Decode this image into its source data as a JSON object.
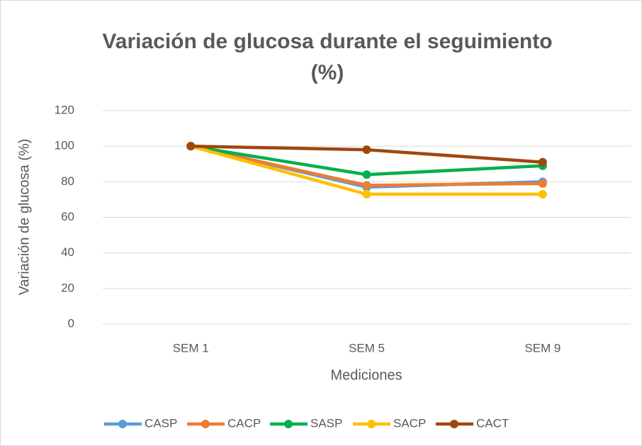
{
  "chart_data": {
    "type": "line",
    "title": "Variación de glucosa durante el seguimiento (%)",
    "y_label": "Variación de glucosa (%)",
    "x_label": "Mediciones",
    "categories": [
      "SEM 1",
      "SEM 5",
      "SEM 9"
    ],
    "series": [
      {
        "name": "CASP",
        "color": "#5b9bd5",
        "values": [
          100,
          77,
          80
        ]
      },
      {
        "name": "CACP",
        "color": "#ed7d31",
        "values": [
          100,
          78,
          79
        ]
      },
      {
        "name": "SASP",
        "color": "#00b050",
        "values": [
          100,
          84,
          89
        ]
      },
      {
        "name": "SACP",
        "color": "#ffc000",
        "values": [
          100,
          73,
          73
        ]
      },
      {
        "name": "CACT",
        "color": "#9e480e",
        "values": [
          100,
          98,
          91
        ]
      }
    ],
    "ylim": [
      0,
      120
    ],
    "yticks": [
      0,
      20,
      40,
      60,
      80,
      100,
      120
    ],
    "grid": true,
    "legend": "bottom"
  }
}
